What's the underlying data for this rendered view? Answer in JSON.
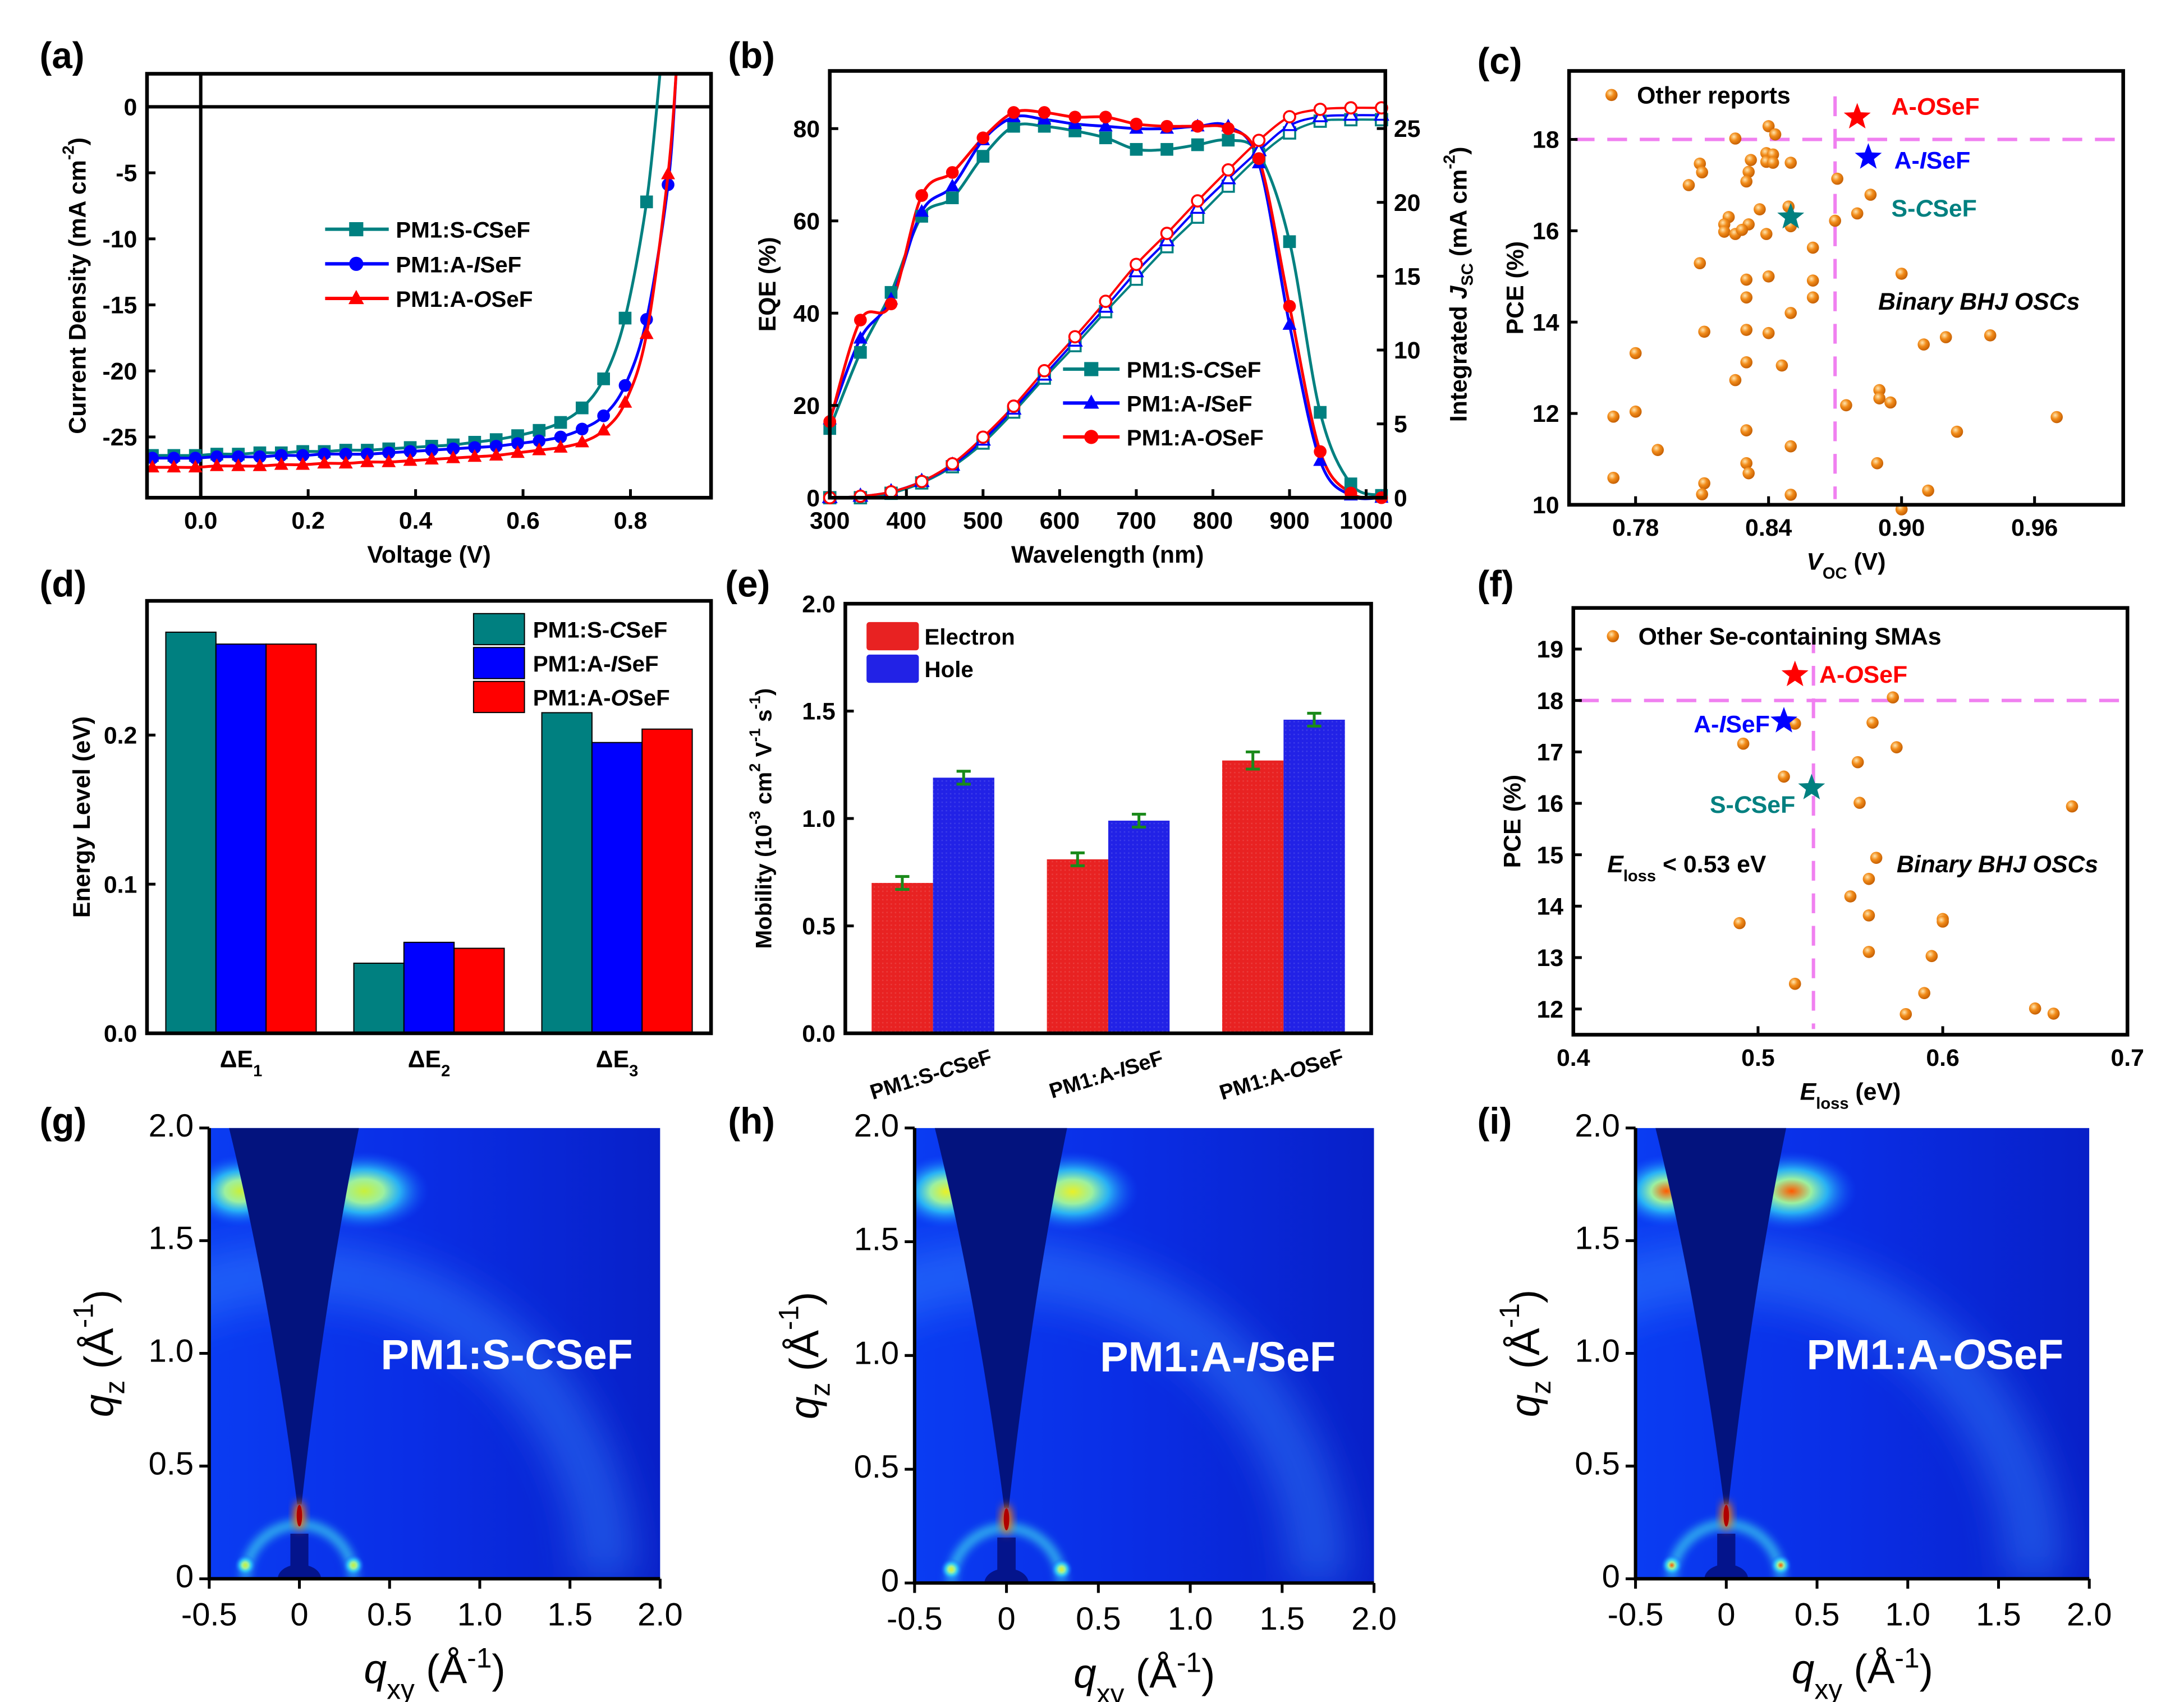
{
  "chart_data": [
    {
      "panel": "(a)",
      "type": "line",
      "xlabel": "Voltage (V)",
      "ylabel": "Current Density (mA cm^{-2})",
      "xlim": [
        -0.1,
        0.95
      ],
      "ylim": [
        -29.6,
        2.5
      ],
      "xticks": [
        0,
        0.2,
        0.4,
        0.6,
        0.8
      ],
      "xtick_labels": [
        "0.0",
        "0.2",
        "0.4",
        "0.6",
        "0.8"
      ],
      "yticks": [
        0,
        -5,
        -10,
        -15,
        -20,
        -25
      ],
      "ytick_labels": [
        "0",
        "-5",
        "-10",
        "-15",
        "-20",
        "-25"
      ],
      "reference_lines": {
        "x": 0,
        "y": 0,
        "color": "#000000"
      },
      "legend_position": "center",
      "series": [
        {
          "name": "PM1:S-*C*SeF",
          "color": "#008080",
          "marker": "square",
          "x": [
            -0.09,
            -0.05,
            -0.01,
            0.03,
            0.07,
            0.11,
            0.15,
            0.19,
            0.23,
            0.27,
            0.31,
            0.35,
            0.39,
            0.43,
            0.47,
            0.51,
            0.55,
            0.59,
            0.63,
            0.67,
            0.71,
            0.75,
            0.79,
            0.83
          ],
          "y": [
            -26.4,
            -26.4,
            -26.4,
            -26.3,
            -26.3,
            -26.2,
            -26.2,
            -26.1,
            -26.1,
            -26.0,
            -26.0,
            -25.9,
            -25.8,
            -25.7,
            -25.6,
            -25.4,
            -25.2,
            -24.9,
            -24.5,
            -23.9,
            -22.8,
            -20.6,
            -16.0,
            -7.2
          ],
          "line_end": [
            0.855,
            2.5
          ]
        },
        {
          "name": "PM1:A-*I*SeF",
          "color": "#0000ff",
          "marker": "circle",
          "x": [
            -0.09,
            -0.05,
            -0.01,
            0.03,
            0.07,
            0.11,
            0.15,
            0.19,
            0.23,
            0.27,
            0.31,
            0.35,
            0.39,
            0.43,
            0.47,
            0.51,
            0.55,
            0.59,
            0.63,
            0.67,
            0.71,
            0.75,
            0.79,
            0.83,
            0.87
          ],
          "y": [
            -26.6,
            -26.6,
            -26.6,
            -26.5,
            -26.5,
            -26.5,
            -26.4,
            -26.4,
            -26.3,
            -26.3,
            -26.3,
            -26.2,
            -26.1,
            -26.0,
            -25.9,
            -25.8,
            -25.7,
            -25.5,
            -25.3,
            -25.0,
            -24.4,
            -23.4,
            -21.1,
            -16.1,
            -5.9
          ],
          "line_end": [
            0.885,
            2.5
          ]
        },
        {
          "name": "PM1:A-*O*SeF",
          "color": "#ff0000",
          "marker": "triangle",
          "x": [
            -0.09,
            -0.05,
            -0.01,
            0.03,
            0.07,
            0.11,
            0.15,
            0.19,
            0.23,
            0.27,
            0.31,
            0.35,
            0.39,
            0.43,
            0.47,
            0.51,
            0.55,
            0.59,
            0.63,
            0.67,
            0.71,
            0.75,
            0.79,
            0.83,
            0.87
          ],
          "y": [
            -27.3,
            -27.3,
            -27.3,
            -27.2,
            -27.2,
            -27.2,
            -27.1,
            -27.1,
            -27.0,
            -27.0,
            -26.9,
            -26.9,
            -26.8,
            -26.7,
            -26.6,
            -26.5,
            -26.4,
            -26.2,
            -26.0,
            -25.8,
            -25.4,
            -24.5,
            -22.4,
            -17.2,
            -5.1
          ],
          "line_end": [
            0.885,
            2.5
          ]
        }
      ]
    },
    {
      "panel": "(b)",
      "type": "line",
      "xlabel": "Wavelength (nm)",
      "ylabel": "EQE (%)",
      "y2label": "Integrated *J*_{SC} (mA cm^{-2})",
      "xlim": [
        300,
        1025
      ],
      "ylim": [
        0,
        92.5
      ],
      "y2lim": [
        0,
        28.9
      ],
      "xticks": [
        300,
        400,
        500,
        600,
        700,
        800,
        900,
        1000
      ],
      "xtick_labels": [
        "300",
        "400",
        "500",
        "600",
        "700",
        "800",
        "900",
        "1000"
      ],
      "yticks": [
        0,
        20,
        40,
        60,
        80
      ],
      "ytick_labels": [
        "0",
        "20",
        "40",
        "60",
        "80"
      ],
      "y2ticks": [
        0,
        5,
        10,
        15,
        20,
        25
      ],
      "y2tick_labels": [
        "0",
        "5",
        "10",
        "15",
        "20",
        "25"
      ],
      "legend_position": "lower-center",
      "x": [
        300,
        340,
        380,
        420,
        460,
        500,
        540,
        580,
        620,
        660,
        700,
        740,
        780,
        820,
        860,
        900,
        940,
        980,
        1020
      ],
      "series": [
        {
          "name": "PM1:S-*C*SeF",
          "color": "#008080",
          "marker": "square",
          "eqe": [
            15,
            31.5,
            44.5,
            61,
            65,
            74,
            80.5,
            80.5,
            79.5,
            78,
            75.5,
            75.5,
            76.5,
            77.5,
            74.5,
            55.5,
            18.5,
            3,
            0.5
          ],
          "integrated_jsc": [
            0,
            0,
            0.3,
            1.0,
            2.1,
            3.7,
            5.8,
            8.1,
            10.3,
            12.6,
            14.8,
            17.0,
            19.0,
            21.1,
            23.1,
            24.7,
            25.5,
            25.6,
            25.6
          ]
        },
        {
          "name": "PM1:A-*I*SeF",
          "color": "#0000ff",
          "marker": "triangle",
          "eqe": [
            17,
            34.5,
            43,
            62,
            67.5,
            77.5,
            82.5,
            82,
            81,
            80.5,
            80,
            80,
            80.5,
            80.5,
            72.5,
            37.5,
            8,
            0.5,
            0
          ],
          "integrated_jsc": [
            0,
            0.1,
            0.4,
            1.1,
            2.2,
            3.9,
            6.0,
            8.3,
            10.6,
            12.9,
            15.3,
            17.4,
            19.6,
            21.6,
            23.5,
            25.2,
            25.8,
            25.9,
            25.9
          ]
        },
        {
          "name": "PM1:A-*O*SeF",
          "color": "#ff0000",
          "marker": "circle",
          "eqe": [
            16.5,
            38.5,
            42,
            65.5,
            70.5,
            78,
            83.5,
            83.5,
            82.5,
            82.5,
            81,
            80.5,
            80.5,
            80,
            73.5,
            41.5,
            10,
            1,
            0
          ],
          "integrated_jsc": [
            0,
            0.1,
            0.4,
            1.1,
            2.3,
            4.1,
            6.2,
            8.6,
            10.9,
            13.3,
            15.8,
            17.9,
            20.1,
            22.2,
            24.2,
            25.8,
            26.3,
            26.4,
            26.4
          ]
        }
      ]
    },
    {
      "panel": "(c)",
      "type": "scatter",
      "xlabel": "*V*_{OC} (V)",
      "ylabel": "PCE (%)",
      "xlim": [
        0.75,
        1.0
      ],
      "ylim": [
        10,
        19.5
      ],
      "xticks": [
        0.78,
        0.84,
        0.9,
        0.96
      ],
      "xtick_labels": [
        "0.78",
        "0.84",
        "0.90",
        "0.96"
      ],
      "yticks": [
        10,
        12,
        14,
        16,
        18
      ],
      "ytick_labels": [
        "10",
        "12",
        "14",
        "16",
        "18"
      ],
      "reference_lines": {
        "x": 0.87,
        "y": 18,
        "color": "#f080f0",
        "style": "dashed"
      },
      "legend_position": "top-left",
      "annotation": "*Binary BHJ OSCs*",
      "others": {
        "name": "Other reports",
        "color": "#f28c1a",
        "x": [
          0.84,
          0.843,
          0.825,
          0.839,
          0.842,
          0.839,
          0.842,
          0.85,
          0.832,
          0.809,
          0.81,
          0.831,
          0.83,
          0.804,
          0.871,
          0.886,
          0.88,
          0.87,
          0.836,
          0.822,
          0.849,
          0.85,
          0.82,
          0.82,
          0.825,
          0.831,
          0.828,
          0.839,
          0.86,
          0.809,
          0.9,
          0.83,
          0.84,
          0.86,
          0.83,
          0.86,
          0.85,
          0.811,
          0.83,
          0.84,
          0.91,
          0.92,
          0.94,
          0.78,
          0.83,
          0.846,
          0.825,
          0.89,
          0.89,
          0.895,
          0.875,
          0.77,
          0.78,
          0.97,
          0.83,
          0.925,
          0.79,
          0.85,
          0.83,
          0.831,
          0.889,
          0.77,
          0.811,
          0.81,
          0.85,
          0.912,
          0.9
        ],
        "y": [
          18.29,
          18.11,
          18.02,
          17.7,
          17.67,
          17.51,
          17.49,
          17.49,
          17.55,
          17.47,
          17.28,
          17.29,
          17.08,
          17.0,
          17.14,
          16.79,
          16.38,
          16.22,
          16.47,
          16.3,
          16.53,
          16.1,
          16.14,
          15.98,
          15.93,
          16.14,
          16.02,
          15.93,
          15.63,
          15.29,
          15.06,
          14.93,
          15.0,
          14.91,
          14.54,
          14.54,
          14.2,
          13.79,
          13.83,
          13.76,
          13.51,
          13.67,
          13.71,
          13.32,
          13.12,
          13.05,
          12.73,
          12.51,
          12.33,
          12.24,
          12.18,
          11.93,
          12.04,
          11.92,
          11.63,
          11.6,
          11.2,
          11.28,
          10.91,
          10.69,
          10.91,
          10.59,
          10.47,
          10.23,
          10.22,
          10.31,
          9.9
        ]
      },
      "highlights": [
        {
          "name": "A-*O*SeF",
          "color": "#ff0000",
          "x": 0.88,
          "y": 18.49
        },
        {
          "name": "A-*I*SeF",
          "color": "#0000ff",
          "x": 0.885,
          "y": 17.61
        },
        {
          "name": "S-*C*SeF",
          "color": "#008080",
          "x": 0.85,
          "y": 16.3
        }
      ]
    },
    {
      "panel": "(d)",
      "type": "bar",
      "ylabel": "Energy Level (eV)",
      "categories": [
        "ΔE_{1}",
        "ΔE_{2}",
        "ΔE_{3}"
      ],
      "ylim": [
        0,
        0.29
      ],
      "yticks": [
        0,
        0.1,
        0.2
      ],
      "ytick_labels": [
        "0.0",
        "0.1",
        "0.2"
      ],
      "legend_position": "top-right",
      "series": [
        {
          "name": "PM1:S-*C*SeF",
          "color": "#008080",
          "values": [
            0.269,
            0.047,
            0.215
          ]
        },
        {
          "name": "PM1:A-*I*SeF",
          "color": "#0000ff",
          "values": [
            0.261,
            0.061,
            0.195
          ]
        },
        {
          "name": "PM1:A-*O*SeF",
          "color": "#ff0000",
          "values": [
            0.261,
            0.057,
            0.204
          ]
        }
      ]
    },
    {
      "panel": "(e)",
      "type": "bar",
      "ylabel": "Mobility (10^{-3} cm^{2} V^{-1} s^{-1})",
      "categories": [
        "PM1:S-*C*SeF",
        "PM1:A-*I*SeF",
        "PM1:A-*O*SeF"
      ],
      "ylim": [
        0,
        2.0
      ],
      "yticks": [
        0,
        0.5,
        1.0,
        1.5,
        2.0
      ],
      "ytick_labels": [
        "0.0",
        "0.5",
        "1.0",
        "1.5",
        "2.0"
      ],
      "legend_position": "top-left",
      "error_color": "#1a8a1a",
      "series": [
        {
          "name": "Electron",
          "color": "#e82222",
          "values": [
            0.7,
            0.81,
            1.27
          ],
          "errors": [
            0.03,
            0.03,
            0.04
          ]
        },
        {
          "name": "Hole",
          "color": "#2222e6",
          "values": [
            1.19,
            0.99,
            1.46
          ],
          "errors": [
            0.03,
            0.03,
            0.03
          ]
        }
      ]
    },
    {
      "panel": "(f)",
      "type": "scatter",
      "xlabel": "*E*_{loss} (eV)",
      "ylabel": "PCE (%)",
      "xlim": [
        0.4,
        0.7
      ],
      "ylim": [
        11.5,
        19.8
      ],
      "xticks": [
        0.4,
        0.5,
        0.6,
        0.7
      ],
      "xtick_labels": [
        "0.4",
        "0.5",
        "0.6",
        "0.7"
      ],
      "yticks": [
        12,
        13,
        14,
        15,
        16,
        17,
        18,
        19
      ],
      "ytick_labels": [
        "12",
        "13",
        "14",
        "15",
        "16",
        "17",
        "18",
        "19"
      ],
      "reference_lines": {
        "x": 0.53,
        "y": 18,
        "color": "#f080f0",
        "style": "dashed"
      },
      "legend_position": "top-left",
      "annotation": "*Binary BHJ OSCs*",
      "annotation2": "*E*_{loss} < 0.53 eV",
      "others": {
        "name": "Other Se-containing SMAs",
        "color": "#f28c1a",
        "x": [
          0.573,
          0.562,
          0.52,
          0.492,
          0.575,
          0.554,
          0.514,
          0.555,
          0.67,
          0.564,
          0.56,
          0.55,
          0.56,
          0.6,
          0.6,
          0.49,
          0.56,
          0.594,
          0.52,
          0.59,
          0.58,
          0.65,
          0.66
        ],
        "y": [
          18.06,
          17.57,
          17.55,
          17.16,
          17.09,
          16.8,
          16.52,
          16.01,
          15.94,
          14.94,
          14.53,
          14.19,
          13.82,
          13.75,
          13.7,
          13.67,
          13.11,
          13.03,
          12.49,
          12.31,
          11.9,
          12.01,
          11.91
        ]
      },
      "highlights": [
        {
          "name": "A-*O*SeF",
          "color": "#ff0000",
          "x": 0.52,
          "y": 18.5
        },
        {
          "name": "A-*I*SeF",
          "color": "#0000ff",
          "x": 0.514,
          "y": 17.6
        },
        {
          "name": "S-*C*SeF",
          "color": "#008080",
          "x": 0.529,
          "y": 16.3
        }
      ]
    },
    {
      "panel": "(g)",
      "type": "heatmap",
      "sample": "PM1:S-*C*SeF",
      "peak_color": "#c8f03c",
      "xlabel": "*q*_{xy} (Å^{-1})",
      "ylabel": "*q*_{z} (Å^{-1})",
      "xlim": [
        -0.5,
        2.0
      ],
      "ylim": [
        0,
        2.0
      ],
      "xticks": [
        -0.5,
        0,
        0.5,
        1.0,
        1.5,
        2.0
      ],
      "xtick_labels": [
        "-0.5",
        "0",
        "0.5",
        "1.0",
        "1.5",
        "2.0"
      ],
      "yticks": [
        0,
        0.5,
        1.0,
        1.5,
        2.0
      ],
      "ytick_labels": [
        "0",
        "0.5",
        "1.0",
        "1.5",
        "2.0"
      ]
    },
    {
      "panel": "(h)",
      "type": "heatmap",
      "sample": "PM1:A-*I*SeF",
      "peak_color": "#e8f028",
      "xlabel": "*q*_{xy} (Å^{-1})",
      "ylabel": "*q*_{z} (Å^{-1})",
      "xlim": [
        -0.5,
        2.0
      ],
      "ylim": [
        0,
        2.0
      ],
      "xticks": [
        -0.5,
        0,
        0.5,
        1.0,
        1.5,
        2.0
      ],
      "xtick_labels": [
        "-0.5",
        "0",
        "0.5",
        "1.0",
        "1.5",
        "2.0"
      ],
      "yticks": [
        0,
        0.5,
        1.0,
        1.5,
        2.0
      ],
      "ytick_labels": [
        "0",
        "0.5",
        "1.0",
        "1.5",
        "2.0"
      ]
    },
    {
      "panel": "(i)",
      "type": "heatmap",
      "sample": "PM1:A-*O*SeF",
      "peak_color": "#ff5a00",
      "xlabel": "*q*_{xy} (Å^{-1})",
      "ylabel": "*q*_{z} (Å^{-1})",
      "xlim": [
        -0.5,
        2.0
      ],
      "ylim": [
        0,
        2.0
      ],
      "xticks": [
        -0.5,
        0,
        0.5,
        1.0,
        1.5,
        2.0
      ],
      "xtick_labels": [
        "-0.5",
        "0",
        "0.5",
        "1.0",
        "1.5",
        "2.0"
      ],
      "yticks": [
        0,
        0.5,
        1.0,
        1.5,
        2.0
      ],
      "ytick_labels": [
        "0",
        "0.5",
        "1.0",
        "1.5",
        "2.0"
      ]
    }
  ]
}
